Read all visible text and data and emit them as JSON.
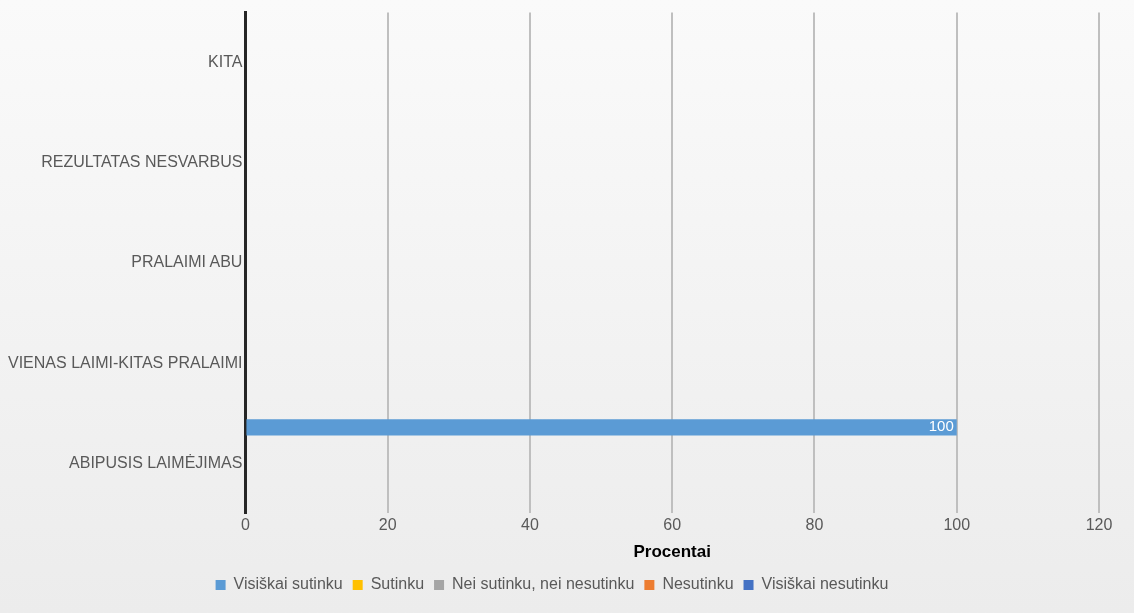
{
  "chart_data": {
    "type": "bar",
    "orientation": "horizontal",
    "xlabel": "Procentai",
    "categories": [
      "KITA",
      "REZULTATAS NESVARBUS",
      "PRALAIMI ABU",
      "VIENAS LAIMI-KITAS PRALAIMI",
      "ABIPUSIS LAIMĖJIMAS"
    ],
    "series": [
      {
        "name": "Visiškai sutinku",
        "color": "#5b9bd5",
        "values": [
          null,
          null,
          null,
          null,
          100
        ]
      },
      {
        "name": "Sutinku",
        "color": "#ffc000",
        "values": [
          null,
          null,
          null,
          null,
          null
        ]
      },
      {
        "name": "Nei sutinku, nei nesutinku",
        "color": "#a5a5a5",
        "values": [
          null,
          null,
          null,
          null,
          null
        ]
      },
      {
        "name": "Nesutinku",
        "color": "#ed7d31",
        "values": [
          null,
          null,
          null,
          null,
          null
        ]
      },
      {
        "name": "Visiškai nesutinku",
        "color": "#4472c4",
        "values": [
          null,
          null,
          null,
          null,
          null
        ]
      }
    ],
    "xlim": [
      0,
      120
    ],
    "xticks": [
      0,
      20,
      40,
      60,
      80,
      100,
      120
    ],
    "grid": "x",
    "legend": "bottom",
    "data_labels": true
  }
}
